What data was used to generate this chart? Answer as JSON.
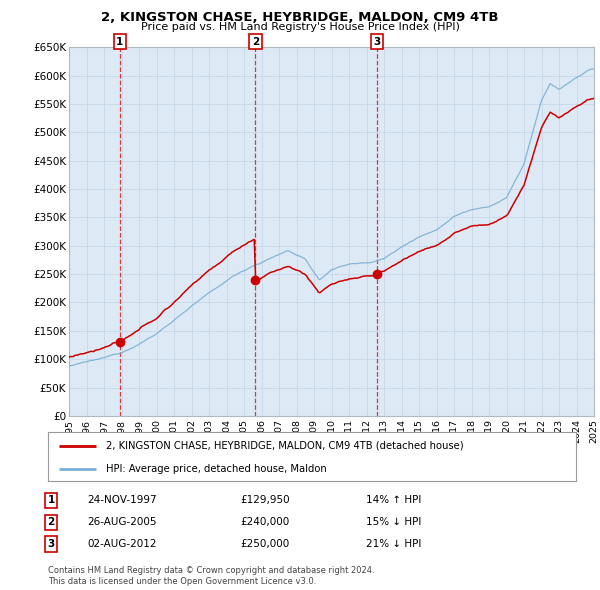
{
  "title": "2, KINGSTON CHASE, HEYBRIDGE, MALDON, CM9 4TB",
  "subtitle": "Price paid vs. HM Land Registry's House Price Index (HPI)",
  "ylabel_ticks": [
    "£0",
    "£50K",
    "£100K",
    "£150K",
    "£200K",
    "£250K",
    "£300K",
    "£350K",
    "£400K",
    "£450K",
    "£500K",
    "£550K",
    "£600K",
    "£650K"
  ],
  "ytick_values": [
    0,
    50000,
    100000,
    150000,
    200000,
    250000,
    300000,
    350000,
    400000,
    450000,
    500000,
    550000,
    600000,
    650000
  ],
  "x_start_year": 1995,
  "x_end_year": 2025,
  "p1_year": 1997.9,
  "p1_price": 129950,
  "p2_year": 2005.65,
  "p2_price": 240000,
  "p3_year": 2012.6,
  "p3_price": 250000,
  "purchase_labels": [
    "1",
    "2",
    "3"
  ],
  "purchase_dates": [
    "24-NOV-1997",
    "26-AUG-2005",
    "02-AUG-2012"
  ],
  "purchase_amounts": [
    "£129,950",
    "£240,000",
    "£250,000"
  ],
  "purchase_hpi_pct": [
    "14% ↑ HPI",
    "15% ↓ HPI",
    "21% ↓ HPI"
  ],
  "legend_line1": "2, KINGSTON CHASE, HEYBRIDGE, MALDON, CM9 4TB (detached house)",
  "legend_line2": "HPI: Average price, detached house, Maldon",
  "footnote1": "Contains HM Land Registry data © Crown copyright and database right 2024.",
  "footnote2": "This data is licensed under the Open Government Licence v3.0.",
  "red_line_color": "#cc0000",
  "blue_line_color": "#7ab0d4",
  "background_color": "#ffffff",
  "grid_color": "#c8d8e8",
  "plot_bg_color": "#ddeaf5"
}
